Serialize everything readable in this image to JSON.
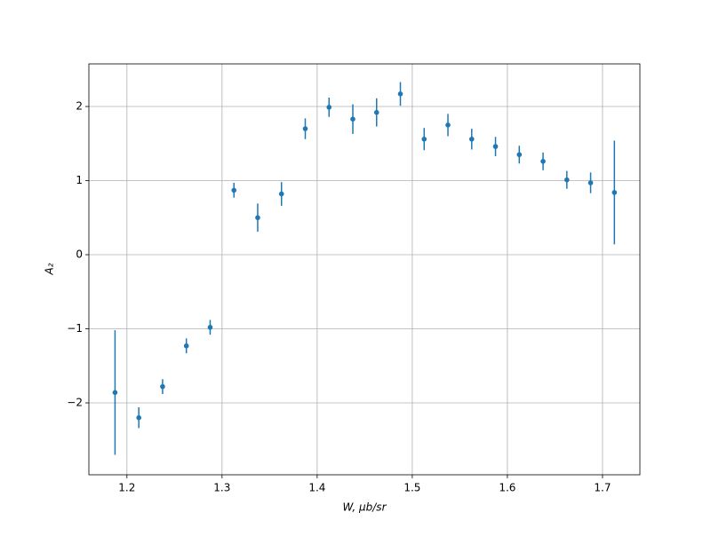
{
  "chart_data": {
    "type": "errorbar",
    "x_label": "W, μb/sr",
    "y_label": "A₂",
    "color": "#1f77b4",
    "grid": true,
    "x": [
      1.1875,
      1.2125,
      1.2375,
      1.2625,
      1.2875,
      1.3125,
      1.3375,
      1.3625,
      1.3875,
      1.4125,
      1.4375,
      1.4625,
      1.4875,
      1.5125,
      1.5375,
      1.5625,
      1.5875,
      1.6125,
      1.6375,
      1.6625,
      1.6875,
      1.7125
    ],
    "values": [
      -1.86,
      -2.2,
      -1.78,
      -1.23,
      -0.98,
      0.87,
      0.5,
      0.82,
      1.7,
      1.99,
      1.83,
      1.92,
      2.17,
      1.56,
      1.75,
      1.56,
      1.46,
      1.35,
      1.26,
      1.01,
      0.97,
      0.84
    ],
    "errors": [
      0.84,
      0.14,
      0.1,
      0.1,
      0.1,
      0.1,
      0.19,
      0.16,
      0.14,
      0.13,
      0.2,
      0.19,
      0.16,
      0.15,
      0.15,
      0.14,
      0.13,
      0.12,
      0.12,
      0.12,
      0.14,
      0.7
    ],
    "xlim": [
      1.16,
      1.7393
    ],
    "ylim": [
      -2.97,
      2.575
    ],
    "xticks": [
      1.2,
      1.3,
      1.4,
      1.5,
      1.6,
      1.7
    ],
    "yticks": [
      {
        "value": -2,
        "label": "−2"
      },
      {
        "value": -1,
        "label": "−1"
      },
      0,
      1,
      2
    ]
  }
}
